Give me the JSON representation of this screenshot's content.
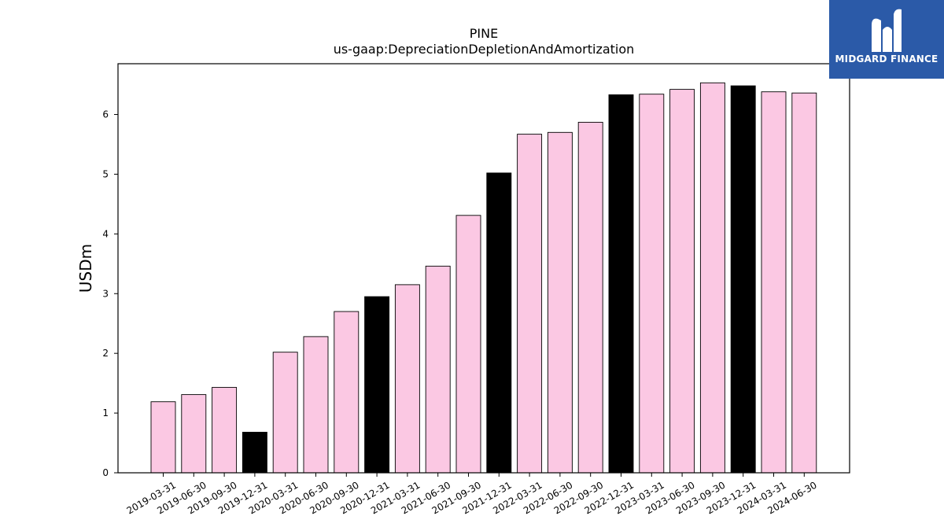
{
  "logo": {
    "text": "MIDGARD FINANCE"
  },
  "chart_data": {
    "type": "bar",
    "title": "PINE",
    "subtitle": "us-gaap:DepreciationDepletionAndAmortization",
    "xlabel": "",
    "ylabel": "USDm",
    "ylim": [
      0,
      6.85
    ],
    "yticks": [
      0,
      1,
      2,
      3,
      4,
      5,
      6
    ],
    "grid": false,
    "colors": {
      "quarter": "#fbc8e3",
      "year_end": "#000000",
      "edge": "#000000"
    },
    "categories": [
      "2019-03-31",
      "2019-06-30",
      "2019-09-30",
      "2019-12-31",
      "2020-03-31",
      "2020-06-30",
      "2020-09-30",
      "2020-12-31",
      "2021-03-31",
      "2021-06-30",
      "2021-09-30",
      "2021-12-31",
      "2022-03-31",
      "2022-06-30",
      "2022-09-30",
      "2022-12-31",
      "2023-03-31",
      "2023-06-30",
      "2023-09-30",
      "2023-12-31",
      "2024-03-31",
      "2024-06-30"
    ],
    "values": [
      1.19,
      1.31,
      1.43,
      0.68,
      2.02,
      2.28,
      2.7,
      2.95,
      3.15,
      3.46,
      4.31,
      5.02,
      5.67,
      5.7,
      5.87,
      6.33,
      6.34,
      6.42,
      6.53,
      6.48,
      6.38,
      6.36
    ],
    "highlight": [
      false,
      false,
      false,
      true,
      false,
      false,
      false,
      true,
      false,
      false,
      false,
      true,
      false,
      false,
      false,
      true,
      false,
      false,
      false,
      true,
      false,
      false
    ]
  }
}
